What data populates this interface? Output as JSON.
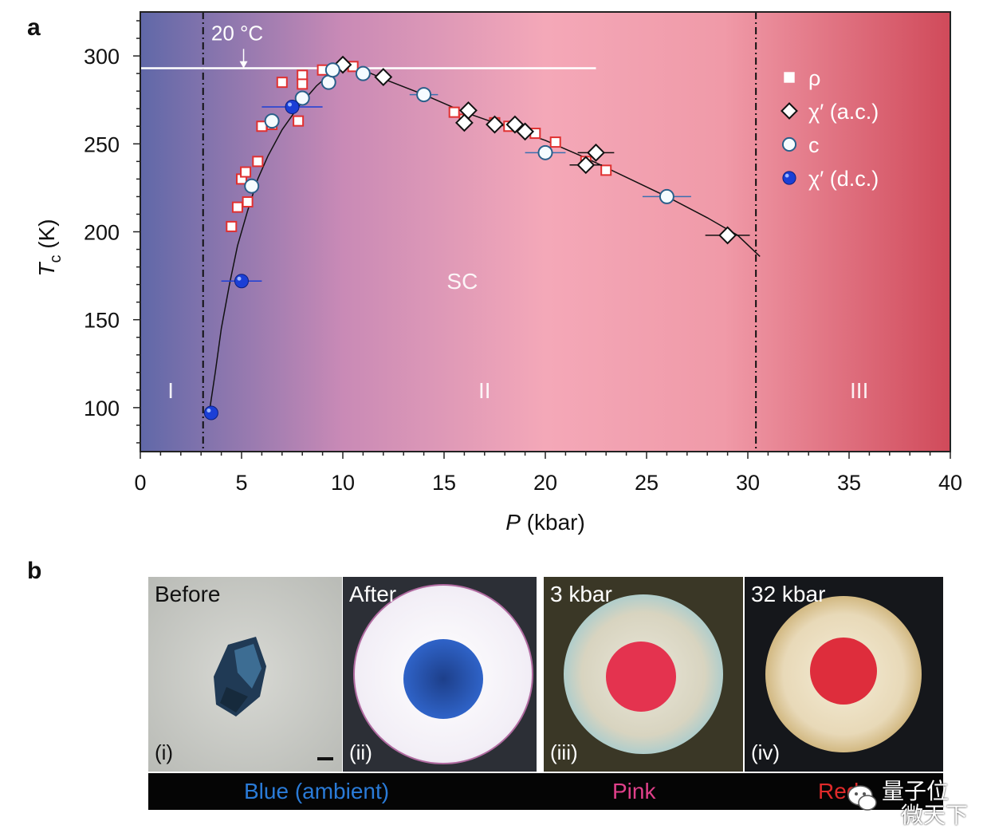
{
  "panel_a_label": "a",
  "panel_b_label": "b",
  "chart_data": {
    "type": "scatter",
    "xlabel_italic": "P",
    "xlabel_unit": " (kbar)",
    "ylabel_main": "T",
    "ylabel_sub": "c",
    "ylabel_unit": " (K)",
    "xlim": [
      0,
      40
    ],
    "ylim": [
      75,
      325
    ],
    "xticks": [
      0,
      5,
      10,
      15,
      20,
      25,
      30,
      35,
      40
    ],
    "yticks": [
      100,
      150,
      200,
      250,
      300
    ],
    "grid": false,
    "legend_position": "top-right",
    "background_gradient": [
      "#6068a8",
      "#c98ab6",
      "#f4a8b8",
      "#f09aa8",
      "#d04a5a"
    ],
    "room_temperature_label": "20 °C",
    "room_temperature_K": 293,
    "room_temperature_line_xmax": 22.5,
    "phase_boundaries": [
      3.1,
      30.4
    ],
    "region_labels": [
      {
        "text": "I",
        "x": 1.5,
        "y": 110
      },
      {
        "text": "II",
        "x": 17,
        "y": 110
      },
      {
        "text": "III",
        "x": 35.5,
        "y": 110
      }
    ],
    "sc_label": {
      "text": "SC",
      "x": 15.9,
      "y": 172
    },
    "guide_curve": [
      [
        3.4,
        97
      ],
      [
        3.7,
        120
      ],
      [
        4.0,
        145
      ],
      [
        4.4,
        170
      ],
      [
        4.8,
        192
      ],
      [
        5.3,
        212
      ],
      [
        5.8,
        230
      ],
      [
        6.3,
        243
      ],
      [
        7.0,
        258
      ],
      [
        7.8,
        271
      ],
      [
        8.7,
        283
      ],
      [
        9.5,
        291
      ],
      [
        10.2,
        294
      ],
      [
        11.0,
        292
      ],
      [
        12.0,
        287
      ],
      [
        14.0,
        278
      ],
      [
        16.0,
        268
      ],
      [
        18.0,
        260
      ],
      [
        20.0,
        252
      ],
      [
        22.0,
        242
      ],
      [
        24.0,
        231
      ],
      [
        26.0,
        220
      ],
      [
        28.0,
        208
      ],
      [
        29.5,
        198
      ],
      [
        30.6,
        186
      ]
    ],
    "series": [
      {
        "name": "ρ",
        "marker": "square",
        "color": "#e03030",
        "points": [
          [
            4.5,
            203
          ],
          [
            4.8,
            214
          ],
          [
            5.0,
            230
          ],
          [
            5.2,
            234
          ],
          [
            5.3,
            217
          ],
          [
            5.8,
            240
          ],
          [
            6.0,
            260
          ],
          [
            6.5,
            261
          ],
          [
            7.0,
            285
          ],
          [
            7.8,
            263
          ],
          [
            8.0,
            289
          ],
          [
            8.0,
            284
          ],
          [
            9.0,
            292
          ],
          [
            10.5,
            294
          ],
          [
            15.5,
            268
          ],
          [
            16.0,
            264
          ],
          [
            17.5,
            262
          ],
          [
            18.2,
            260
          ],
          [
            19.5,
            256
          ],
          [
            20.5,
            251
          ],
          [
            22.0,
            240
          ],
          [
            23.0,
            235
          ]
        ]
      },
      {
        "name": "χ′ (a.c.)",
        "marker": "diamond",
        "color": "#111111",
        "points": [
          [
            10.0,
            295
          ],
          [
            12.0,
            288
          ],
          [
            16.0,
            262
          ],
          [
            16.2,
            269
          ],
          [
            17.5,
            261
          ],
          [
            18.5,
            261
          ],
          [
            19.0,
            257
          ],
          [
            22.0,
            238
          ],
          [
            22.5,
            245
          ],
          [
            29.0,
            198
          ]
        ],
        "xerr": [
          0,
          0,
          0,
          0,
          0,
          0,
          0,
          0.8,
          0.9,
          1.1
        ]
      },
      {
        "name": "c",
        "marker": "circle-open",
        "color": "#2a5f8a",
        "points": [
          [
            5.5,
            226
          ],
          [
            6.5,
            263
          ],
          [
            8.0,
            276
          ],
          [
            9.3,
            285
          ],
          [
            9.5,
            292
          ],
          [
            11.0,
            290
          ],
          [
            14.0,
            278
          ],
          [
            20.0,
            245
          ],
          [
            26.0,
            220
          ]
        ],
        "xerr": [
          0,
          0,
          0,
          0,
          0,
          0,
          0.7,
          1.0,
          1.2
        ]
      },
      {
        "name": "χ′ (d.c.)",
        "marker": "circle-filled",
        "color": "#1b3fd6",
        "points": [
          [
            3.5,
            97
          ],
          [
            5.0,
            172
          ],
          [
            7.5,
            271
          ]
        ],
        "xerr": [
          0,
          1.0,
          1.5
        ]
      }
    ]
  },
  "photos": [
    {
      "title": "Before",
      "roman": "(i)"
    },
    {
      "title": "After",
      "roman": "(ii)"
    },
    {
      "title": "3 kbar",
      "roman": "(iii)"
    },
    {
      "title": "32 kbar",
      "roman": "(iv)"
    }
  ],
  "color_labels": [
    {
      "text": "Blue (ambient)",
      "color": "#2a7bd8"
    },
    {
      "text": "Pink",
      "color": "#e0408a"
    },
    {
      "text": "Red",
      "color": "#e02a2a"
    }
  ],
  "watermark": {
    "line1": "量子位",
    "line2": "微天下"
  }
}
